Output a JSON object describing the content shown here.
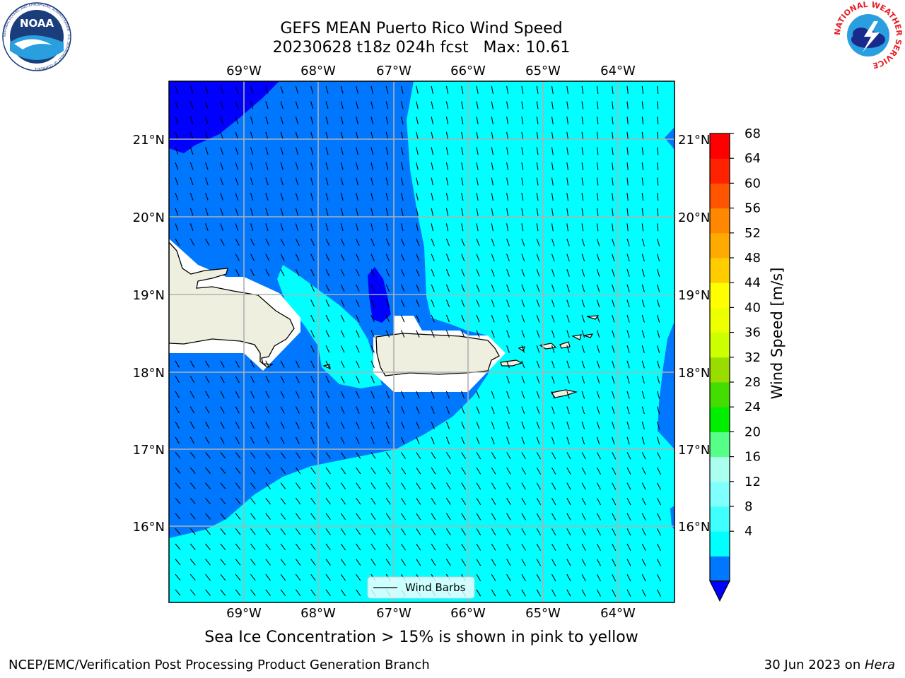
{
  "header": {
    "title_line1": "GEFS MEAN Puerto Rico Wind Speed",
    "title_line2": "20230628 t18z 024h fcst   Max: 10.61"
  },
  "map": {
    "lon_labels": [
      "69°W",
      "68°W",
      "67°W",
      "66°W",
      "65°W",
      "64°W"
    ],
    "lat_labels": [
      "21°N",
      "20°N",
      "19°N",
      "18°N",
      "17°N",
      "16°N"
    ],
    "legend_label": "Wind Barbs"
  },
  "colorbar": {
    "label": "Wind Speed [m/s]",
    "ticks": [
      "68",
      "64",
      "60",
      "56",
      "52",
      "48",
      "44",
      "40",
      "36",
      "32",
      "28",
      "24",
      "20",
      "16",
      "12",
      "8",
      "4"
    ],
    "colors": [
      "#0000ff",
      "#0077ff",
      "#00ffff",
      "#40ffff",
      "#80ffff",
      "#aaffee",
      "#55ff88",
      "#00ee00",
      "#44dd00",
      "#99dd00",
      "#ccff00",
      "#eeff00",
      "#ffff00",
      "#ffcc00",
      "#ffaa00",
      "#ff8800",
      "#ff5500",
      "#ff2200",
      "#ff0000"
    ]
  },
  "caption": "Sea Ice Concentration > 15% is shown in pink to yellow",
  "footer": {
    "left": "NCEP/EMC/Verification Post Processing Product Generation Branch",
    "right_date": "30 Jun 2023 on ",
    "right_host": "Hera"
  },
  "logos": {
    "noaa": "NOAA",
    "noaa_ring": "NATIONAL OCEANIC AND ATMOSPHERIC ADMINISTRATION · U.S. DEPARTMENT OF COMMERCE",
    "nws_ring": "NATIONAL WEATHER SERVICE"
  }
}
